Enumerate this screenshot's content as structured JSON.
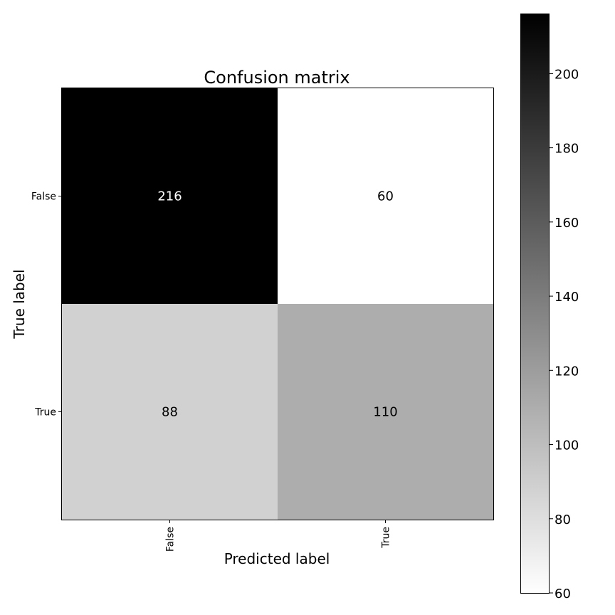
{
  "chart_data": {
    "type": "heatmap",
    "title": "Confusion matrix",
    "xlabel": "Predicted label",
    "ylabel": "True label",
    "x_categories": [
      "False",
      "True"
    ],
    "y_categories": [
      "False",
      "True"
    ],
    "values": [
      [
        216,
        60
      ],
      [
        88,
        110
      ]
    ],
    "colormap": "gray_r",
    "colorbar": {
      "min": 60,
      "max": 216,
      "ticks": [
        60,
        80,
        100,
        120,
        140,
        160,
        180,
        200
      ]
    },
    "grid": false
  }
}
